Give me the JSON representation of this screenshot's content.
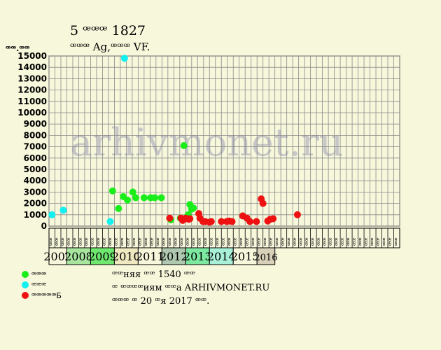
{
  "header": {
    "title": "5 ꟹꟹꟹ 1827",
    "subtitle": "ꟹꟹꟹ Ag,ꟹꟹꟹ VF."
  },
  "watermark": "arhivmonet.ru",
  "info": {
    "line1": "ꟹꟹняя ꟹꟹ 1540 ꟹꟹ",
    "line2": "ꟹ ꟹꟹꟹꟹиям ꟹꟹа ARHIVMONET.RU",
    "line3": "ꟹꟹꟹ ꟹ 20 ꟹя 2017 ꟹꟹ."
  },
  "colors": {
    "background": "#f7f7dc",
    "grid": "#8a8a8a",
    "green": "#1aee1a",
    "cyan": "#12f0f0",
    "red": "#ee1111",
    "watermark": "#c7c7c7"
  },
  "chart_data": {
    "type": "scatter",
    "ylabel": "ꟹꟹ.ꟹꟹ",
    "ylim": [
      0,
      15000
    ],
    "yticks": [
      0,
      1000,
      2000,
      3000,
      4000,
      5000,
      6000,
      7000,
      8000,
      9000,
      10000,
      11000,
      12000,
      13000,
      14000,
      15000
    ],
    "grid": true,
    "quarter_labels": [
      "ꟹꟹ",
      "ꟹꟹ",
      "ꟹꟹ",
      "ꟹꟹ",
      "ꟹꟹ",
      "ꟹꟹ",
      "ꟹꟹ",
      "ꟹꟹ",
      "ꟹꟹ",
      "ꟹꟹ",
      "ꟹꟹ",
      "ꟹꟹ",
      "ꟹꟹ",
      "ꟹꟹ",
      "ꟹꟹ",
      "ꟹꟹ",
      "ꟹꟹ",
      "ꟹꟹ",
      "ꟹꟹ",
      "ꟹꟹ",
      "ꟹꟹ",
      "ꟹꟹ",
      "ꟹꟹ",
      "ꟹꟹ",
      "ꟹꟹ",
      "ꟹꟹ",
      "ꟹꟹ",
      "ꟹꟹ",
      "ꟹꟹ",
      "ꟹꟹ",
      "ꟹꟹ",
      "ꟹꟹ",
      "ꟹꟹ",
      "ꟹꟹ",
      "ꟹꟹ",
      "ꟹꟹ",
      "ꟹꟹ",
      "ꟹꟹ",
      "ꟹꟹ",
      "ꟹꟹ",
      "ꟹꟹ",
      "ꟹꟹ",
      "ꟹꟹ",
      "ꟹꟹ",
      "ꟹꟹ",
      "ꟹꟹ",
      "ꟹꟹ",
      "ꟹꟹ",
      "ꟹꟹ",
      "ꟹꟹ",
      "ꟹꟹ",
      "ꟹꟹ",
      "ꟹꟹ",
      "ꟹꟹ",
      "ꟹꟹ",
      "ꟹꟹ",
      "ꟹꟹ",
      "ꟹꟹ",
      "ꟹꟹ"
    ],
    "years": [
      {
        "label": "2007",
        "quarters": 3,
        "color": "#f7f7dc"
      },
      {
        "label": "2008",
        "quarters": 4,
        "color": "#a8e6a0"
      },
      {
        "label": "2009",
        "quarters": 4,
        "color": "#6ee86e"
      },
      {
        "label": "2010",
        "quarters": 4,
        "color": "#f0e8c0"
      },
      {
        "label": "2011",
        "quarters": 4,
        "color": "#f7f7dc"
      },
      {
        "label": "2012",
        "quarters": 4,
        "color": "#b0c8b0"
      },
      {
        "label": "2013",
        "quarters": 4,
        "color": "#7ce8a0"
      },
      {
        "label": "2014",
        "quarters": 4,
        "color": "#a8f0d8"
      },
      {
        "label": "2015",
        "quarters": 4,
        "color": "#f7f7dc"
      },
      {
        "label": "2016",
        "quarters": 3,
        "color": "#d8d0b8"
      }
    ],
    "series": [
      {
        "name": "ꟹꟹꟹ",
        "color": "#1aee1a",
        "points": [
          {
            "q": 10.2,
            "y": 3100
          },
          {
            "q": 11.2,
            "y": 1550
          },
          {
            "q": 12.0,
            "y": 2600
          },
          {
            "q": 12.7,
            "y": 2300
          },
          {
            "q": 13.6,
            "y": 3000
          },
          {
            "q": 14.1,
            "y": 2500
          },
          {
            "q": 15.5,
            "y": 2500
          },
          {
            "q": 16.6,
            "y": 2500
          },
          {
            "q": 17.3,
            "y": 2500
          },
          {
            "q": 18.4,
            "y": 2500
          },
          {
            "q": 20.0,
            "y": 550
          },
          {
            "q": 21.6,
            "y": 700
          },
          {
            "q": 22.2,
            "y": 7100
          },
          {
            "q": 22.9,
            "y": 1000
          },
          {
            "q": 23.2,
            "y": 1900
          },
          {
            "q": 23.5,
            "y": 1500
          },
          {
            "q": 23.8,
            "y": 1600
          },
          {
            "q": 22.7,
            "y": 800
          },
          {
            "q": 32.1,
            "y": 900
          }
        ]
      },
      {
        "name": "ꟹꟹꟹ",
        "color": "#12f0f0",
        "points": [
          {
            "q": 0.0,
            "y": 1000
          },
          {
            "q": 1.9,
            "y": 1400
          },
          {
            "q": 9.8,
            "y": 400
          },
          {
            "q": 12.2,
            "y": 14800
          }
        ]
      },
      {
        "name": "ꟹꟹꟹꟹꟹБ",
        "color": "#ee1111",
        "points": [
          {
            "q": 19.8,
            "y": 700
          },
          {
            "q": 21.7,
            "y": 700
          },
          {
            "q": 22.0,
            "y": 500
          },
          {
            "q": 22.5,
            "y": 700
          },
          {
            "q": 23.0,
            "y": 600
          },
          {
            "q": 23.2,
            "y": 650
          },
          {
            "q": 24.7,
            "y": 1100
          },
          {
            "q": 24.9,
            "y": 700
          },
          {
            "q": 25.4,
            "y": 400
          },
          {
            "q": 25.8,
            "y": 400
          },
          {
            "q": 26.5,
            "y": 350
          },
          {
            "q": 26.8,
            "y": 400
          },
          {
            "q": 28.5,
            "y": 400
          },
          {
            "q": 29.4,
            "y": 400
          },
          {
            "q": 29.8,
            "y": 450
          },
          {
            "q": 30.3,
            "y": 400
          },
          {
            "q": 32.1,
            "y": 900
          },
          {
            "q": 32.8,
            "y": 700
          },
          {
            "q": 33.3,
            "y": 400
          },
          {
            "q": 34.4,
            "y": 400
          },
          {
            "q": 35.2,
            "y": 2400
          },
          {
            "q": 35.5,
            "y": 2000
          },
          {
            "q": 36.3,
            "y": 450
          },
          {
            "q": 36.7,
            "y": 600
          },
          {
            "q": 37.2,
            "y": 650
          },
          {
            "q": 41.3,
            "y": 1000
          }
        ]
      }
    ]
  }
}
